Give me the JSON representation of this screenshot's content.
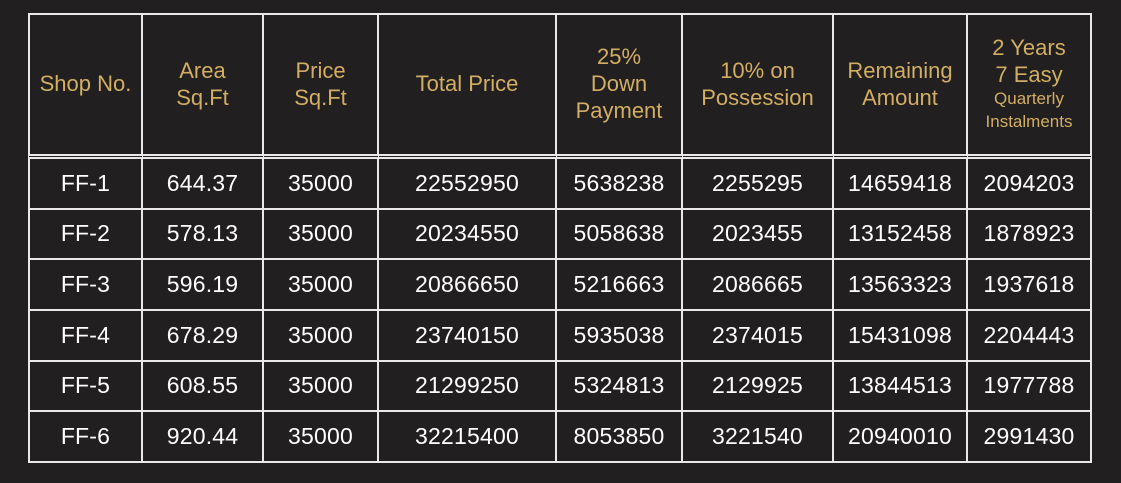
{
  "table": {
    "columns": [
      {
        "key": "shop_no",
        "lines": [
          "Shop No."
        ]
      },
      {
        "key": "area",
        "lines": [
          "Area",
          "Sq.Ft"
        ]
      },
      {
        "key": "price_sqft",
        "lines": [
          "Price",
          "Sq.Ft"
        ]
      },
      {
        "key": "total_price",
        "lines": [
          "Total Price"
        ]
      },
      {
        "key": "down_payment",
        "lines": [
          "25%",
          "Down",
          "Payment"
        ]
      },
      {
        "key": "possession",
        "lines": [
          "10% on",
          "Possession"
        ]
      },
      {
        "key": "remaining",
        "lines": [
          "Remaining",
          "Amount"
        ]
      },
      {
        "key": "instalments",
        "lines": [
          "2 Years",
          "7 Easy",
          "Quarterly",
          "Instalments"
        ]
      }
    ],
    "rows": [
      [
        "FF-1",
        "644.37",
        "35000",
        "22552950",
        "5638238",
        "2255295",
        "14659418",
        "2094203"
      ],
      [
        "FF-2",
        "578.13",
        "35000",
        "20234550",
        "5058638",
        "2023455",
        "13152458",
        "1878923"
      ],
      [
        "FF-3",
        "596.19",
        "35000",
        "20866650",
        "5216663",
        "2086665",
        "13563323",
        "1937618"
      ],
      [
        "FF-4",
        "678.29",
        "35000",
        "23740150",
        "5935038",
        "2374015",
        "15431098",
        "2204443"
      ],
      [
        "FF-5",
        "608.55",
        "35000",
        "21299250",
        "5324813",
        "2129925",
        "13844513",
        "1977788"
      ],
      [
        "FF-6",
        "920.44",
        "35000",
        "32215400",
        "8053850",
        "3221540",
        "20940010",
        "2991430"
      ]
    ]
  },
  "colors": {
    "background": "#221f20",
    "header_text": "#d2ae63",
    "cell_text": "#ffffff",
    "border": "#e9e9e9"
  }
}
